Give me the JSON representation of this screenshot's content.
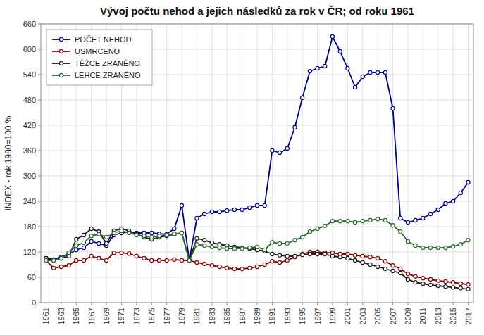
{
  "chart_data": {
    "type": "line",
    "title": "Vývoj počtu nehod a jejich následků za rok v ČR; od roku 1961",
    "ylabel": "INDEX - rok 1980=100 %",
    "x": [
      1961,
      1962,
      1963,
      1964,
      1965,
      1966,
      1967,
      1968,
      1969,
      1970,
      1971,
      1972,
      1973,
      1974,
      1975,
      1976,
      1977,
      1978,
      1979,
      1980,
      1981,
      1982,
      1983,
      1984,
      1985,
      1986,
      1987,
      1988,
      1989,
      1990,
      1991,
      1992,
      1993,
      1994,
      1995,
      1996,
      1997,
      1998,
      1999,
      2000,
      2001,
      2002,
      2003,
      2004,
      2005,
      2006,
      2007,
      2008,
      2009,
      2010,
      2011,
      2012,
      2013,
      2014,
      2015,
      2016,
      2017
    ],
    "xlim": [
      1960.3,
      2017.7
    ],
    "xticks": [
      1961,
      1963,
      1965,
      1967,
      1969,
      1971,
      1973,
      1975,
      1977,
      1979,
      1981,
      1983,
      1985,
      1987,
      1989,
      1991,
      1993,
      1995,
      1997,
      1999,
      2001,
      2003,
      2005,
      2007,
      2009,
      2011,
      2013,
      2015,
      2017
    ],
    "ylim": [
      0,
      660
    ],
    "yticks": [
      0,
      60,
      120,
      180,
      240,
      300,
      360,
      420,
      480,
      540,
      600,
      660
    ],
    "grid": true,
    "legend": "upper left",
    "marker": "circle",
    "series": [
      {
        "name": "POČET NEHOD",
        "color": "#00008B",
        "values": [
          105,
          102,
          108,
          114,
          125,
          130,
          145,
          140,
          135,
          160,
          165,
          168,
          165,
          165,
          165,
          163,
          162,
          175,
          230,
          100,
          200,
          210,
          215,
          215,
          218,
          220,
          220,
          225,
          230,
          230,
          360,
          355,
          365,
          415,
          485,
          548,
          555,
          560,
          630,
          595,
          555,
          510,
          535,
          545,
          545,
          545,
          460,
          200,
          190,
          195,
          200,
          210,
          220,
          235,
          240,
          260,
          285
        ]
      },
      {
        "name": "USMRCENO",
        "color": "#8B0000",
        "values": [
          100,
          82,
          85,
          88,
          100,
          100,
          110,
          105,
          100,
          118,
          118,
          116,
          110,
          105,
          100,
          100,
          100,
          102,
          100,
          100,
          95,
          92,
          88,
          85,
          82,
          80,
          80,
          82,
          85,
          90,
          98,
          95,
          100,
          108,
          115,
          120,
          120,
          118,
          118,
          115,
          115,
          112,
          110,
          108,
          105,
          98,
          88,
          80,
          68,
          62,
          58,
          55,
          52,
          50,
          48,
          45,
          43
        ]
      },
      {
        "name": "TĚŽCE ZRANĚNO",
        "color": "#1a1a1a",
        "values": [
          105,
          100,
          105,
          110,
          150,
          160,
          175,
          168,
          140,
          170,
          175,
          170,
          162,
          155,
          150,
          155,
          158,
          162,
          165,
          100,
          152,
          148,
          142,
          138,
          135,
          132,
          130,
          128,
          125,
          122,
          115,
          112,
          110,
          110,
          113,
          115,
          115,
          115,
          110,
          108,
          105,
          100,
          95,
          90,
          85,
          80,
          75,
          70,
          55,
          48,
          45,
          42,
          40,
          38,
          36,
          34,
          32
        ]
      },
      {
        "name": "LEHCE ZRANĚNO",
        "color": "#2d6a2d",
        "values": [
          100,
          100,
          105,
          118,
          135,
          142,
          158,
          162,
          155,
          165,
          170,
          165,
          160,
          158,
          155,
          158,
          160,
          163,
          165,
          100,
          138,
          135,
          132,
          130,
          128,
          128,
          128,
          130,
          132,
          125,
          143,
          140,
          140,
          148,
          155,
          168,
          175,
          182,
          193,
          193,
          193,
          190,
          193,
          195,
          198,
          195,
          183,
          168,
          145,
          135,
          130,
          130,
          130,
          130,
          133,
          138,
          148
        ]
      }
    ]
  }
}
